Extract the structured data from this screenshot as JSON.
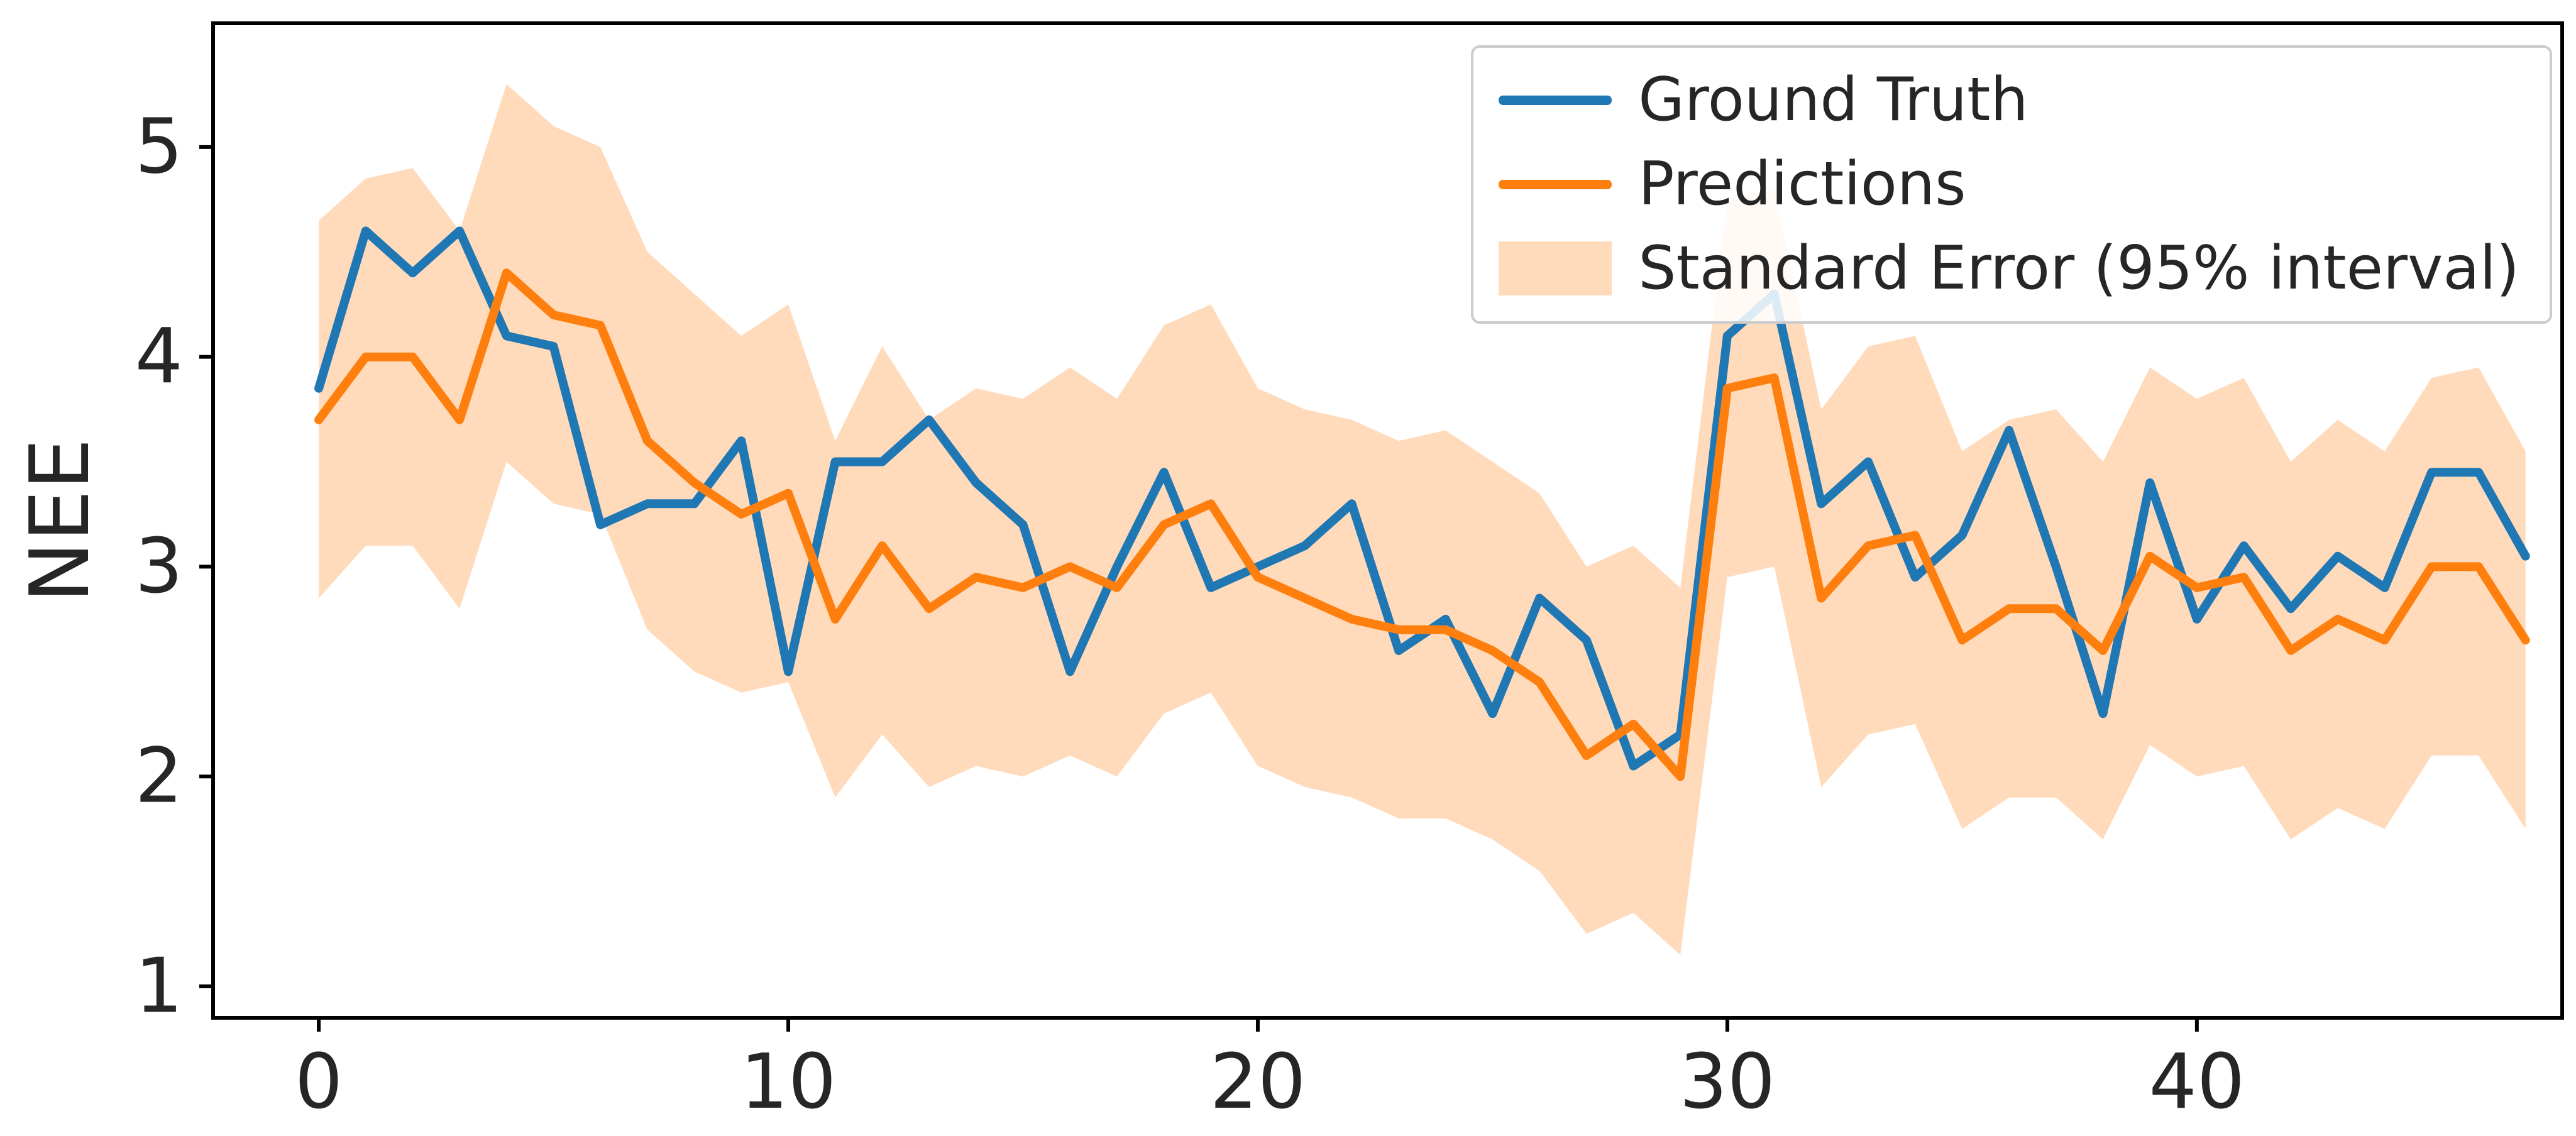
{
  "chart_data": {
    "type": "line",
    "title": "",
    "xlabel": "",
    "ylabel": "NEE",
    "grid": false,
    "legend_position": "upper right",
    "xlim": [
      -2.25,
      47.78
    ],
    "ylim": [
      0.85,
      5.59
    ],
    "xticks": [
      0,
      10,
      20,
      30,
      40
    ],
    "yticks": [
      1,
      2,
      3,
      4,
      5
    ],
    "x": [
      0,
      1,
      2,
      3,
      4,
      5,
      6,
      7,
      8,
      9,
      10,
      11,
      12,
      13,
      14,
      15,
      16,
      17,
      18,
      19,
      20,
      21,
      22,
      23,
      24,
      25,
      26,
      27,
      28,
      29,
      30,
      31,
      32,
      33,
      34,
      35,
      36,
      37,
      38,
      39,
      40,
      41,
      42,
      43,
      44,
      45,
      46,
      47
    ],
    "series": [
      {
        "name": "Ground Truth",
        "color": "#1f77b4",
        "values": [
          3.85,
          4.6,
          4.4,
          4.6,
          4.1,
          4.05,
          3.2,
          3.3,
          3.3,
          3.6,
          2.5,
          3.5,
          3.5,
          3.7,
          3.4,
          3.2,
          2.5,
          3.0,
          3.45,
          2.9,
          3.0,
          3.1,
          3.3,
          2.6,
          2.75,
          2.3,
          2.85,
          2.65,
          2.05,
          2.2,
          4.1,
          4.3,
          3.3,
          3.5,
          2.95,
          3.15,
          3.65,
          3.0,
          2.3,
          3.4,
          2.75,
          3.1,
          2.8,
          3.05,
          2.9,
          3.45,
          3.45,
          3.05
        ]
      },
      {
        "name": "Predictions",
        "color": "#ff7f0e",
        "values": [
          3.7,
          4.0,
          4.0,
          3.7,
          4.4,
          4.2,
          4.15,
          3.6,
          3.4,
          3.25,
          3.35,
          2.75,
          3.1,
          2.8,
          2.95,
          2.9,
          3.0,
          2.9,
          3.2,
          3.3,
          2.95,
          2.85,
          2.75,
          2.7,
          2.7,
          2.6,
          2.45,
          2.1,
          2.25,
          2.0,
          3.85,
          3.9,
          2.85,
          3.1,
          3.15,
          2.65,
          2.8,
          2.8,
          2.6,
          3.05,
          2.9,
          2.95,
          2.6,
          2.75,
          2.65,
          3.0,
          3.0,
          2.65
        ]
      }
    ],
    "band": {
      "name": "Standard Error (95% interval)",
      "color": "#ff7f0e",
      "opacity": 0.28,
      "upper": [
        4.65,
        4.85,
        4.9,
        4.6,
        5.3,
        5.1,
        5.0,
        4.5,
        4.3,
        4.1,
        4.25,
        3.6,
        4.05,
        3.7,
        3.85,
        3.8,
        3.95,
        3.8,
        4.15,
        4.25,
        3.85,
        3.75,
        3.7,
        3.6,
        3.65,
        3.5,
        3.35,
        3.0,
        3.1,
        2.9,
        4.75,
        4.8,
        3.75,
        4.05,
        4.1,
        3.55,
        3.7,
        3.75,
        3.5,
        3.95,
        3.8,
        3.9,
        3.5,
        3.7,
        3.55,
        3.9,
        3.95,
        3.55
      ],
      "lower": [
        2.85,
        3.1,
        3.1,
        2.8,
        3.5,
        3.3,
        3.25,
        2.7,
        2.5,
        2.4,
        2.45,
        1.9,
        2.2,
        1.95,
        2.05,
        2.0,
        2.1,
        2.0,
        2.3,
        2.4,
        2.05,
        1.95,
        1.9,
        1.8,
        1.8,
        1.7,
        1.55,
        1.25,
        1.35,
        1.15,
        2.95,
        3.0,
        1.95,
        2.2,
        2.25,
        1.75,
        1.9,
        1.9,
        1.7,
        2.15,
        2.0,
        2.05,
        1.7,
        1.85,
        1.75,
        2.1,
        2.1,
        1.75
      ]
    },
    "axis_color": "#000000",
    "tick_label_color": "#262626",
    "line_width": 14
  }
}
